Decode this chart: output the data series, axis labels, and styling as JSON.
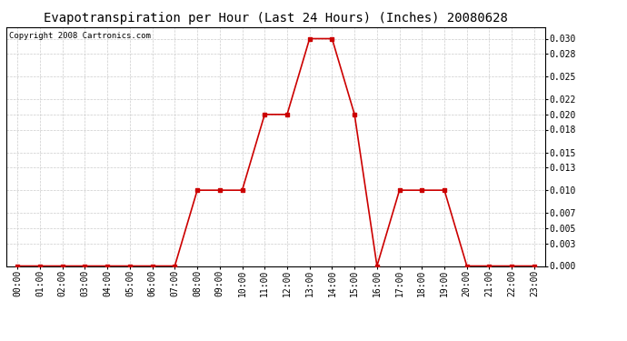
{
  "title": "Evapotranspiration per Hour (Last 24 Hours) (Inches) 20080628",
  "copyright": "Copyright 2008 Cartronics.com",
  "hours": [
    "00:00",
    "01:00",
    "02:00",
    "03:00",
    "04:00",
    "05:00",
    "06:00",
    "07:00",
    "08:00",
    "09:00",
    "10:00",
    "11:00",
    "12:00",
    "13:00",
    "14:00",
    "15:00",
    "16:00",
    "17:00",
    "18:00",
    "19:00",
    "20:00",
    "21:00",
    "22:00",
    "23:00"
  ],
  "values": [
    0.0,
    0.0,
    0.0,
    0.0,
    0.0,
    0.0,
    0.0,
    0.0,
    0.01,
    0.01,
    0.01,
    0.02,
    0.02,
    0.03,
    0.03,
    0.02,
    0.0,
    0.01,
    0.01,
    0.01,
    0.0,
    0.0,
    0.0,
    0.0
  ],
  "line_color": "#cc0000",
  "marker": "s",
  "marker_size": 3,
  "line_width": 1.2,
  "background_color": "#ffffff",
  "grid_color": "#cccccc",
  "ylim": [
    0.0,
    0.0315
  ],
  "yticks": [
    0.0,
    0.003,
    0.005,
    0.007,
    0.01,
    0.013,
    0.015,
    0.018,
    0.02,
    0.022,
    0.025,
    0.028,
    0.03
  ],
  "title_fontsize": 10,
  "tick_fontsize": 7,
  "copyright_fontsize": 6.5
}
